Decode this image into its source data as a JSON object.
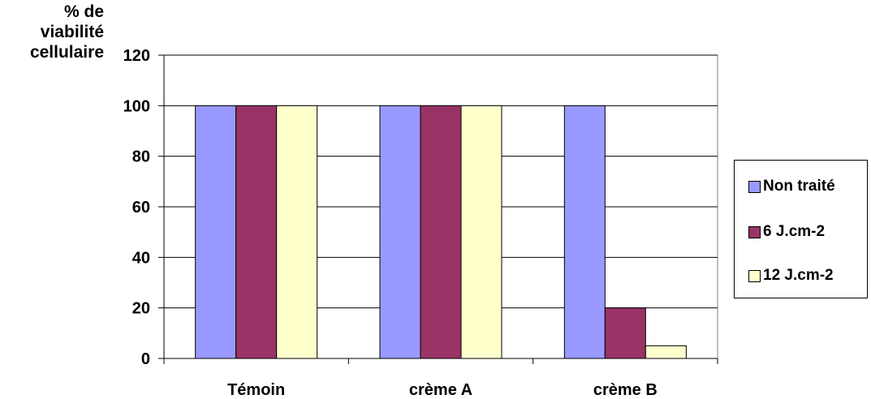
{
  "chart_data": {
    "type": "bar",
    "ylabel_lines": [
      "% de",
      "viabilité",
      "cellulaire"
    ],
    "categories": [
      "Témoin",
      "crème A",
      "crème B"
    ],
    "series": [
      {
        "name": "Non traité",
        "values": [
          100,
          100,
          100
        ],
        "color": "#9999FF"
      },
      {
        "name": "6 J.cm-2",
        "values": [
          100,
          100,
          20
        ],
        "color": "#993366"
      },
      {
        "name": "12 J.cm-2",
        "values": [
          100,
          100,
          5
        ],
        "color": "#FFFFCC"
      }
    ],
    "yticks": [
      0,
      20,
      40,
      60,
      80,
      100,
      120
    ],
    "ylim": [
      0,
      120
    ],
    "grid": true,
    "legend_position": "right"
  }
}
